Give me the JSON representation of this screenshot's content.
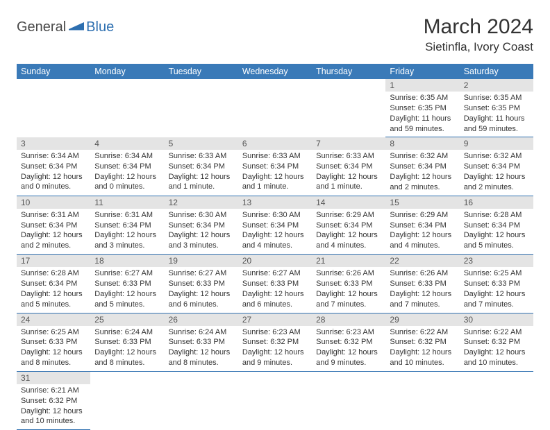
{
  "logo": {
    "general": "General",
    "blue": "Blue"
  },
  "title": "March 2024",
  "location": "Sietinfla, Ivory Coast",
  "colors": {
    "header_bg": "#3a7ab8",
    "header_text": "#ffffff",
    "daynum_bg": "#e4e4e4",
    "border": "#2d6fb0",
    "text": "#333333"
  },
  "day_names": [
    "Sunday",
    "Monday",
    "Tuesday",
    "Wednesday",
    "Thursday",
    "Friday",
    "Saturday"
  ],
  "weeks": [
    [
      null,
      null,
      null,
      null,
      null,
      {
        "n": "1",
        "sr": "6:35 AM",
        "ss": "6:35 PM",
        "dl": "11 hours and 59 minutes."
      },
      {
        "n": "2",
        "sr": "6:35 AM",
        "ss": "6:35 PM",
        "dl": "11 hours and 59 minutes."
      }
    ],
    [
      {
        "n": "3",
        "sr": "6:34 AM",
        "ss": "6:34 PM",
        "dl": "12 hours and 0 minutes."
      },
      {
        "n": "4",
        "sr": "6:34 AM",
        "ss": "6:34 PM",
        "dl": "12 hours and 0 minutes."
      },
      {
        "n": "5",
        "sr": "6:33 AM",
        "ss": "6:34 PM",
        "dl": "12 hours and 1 minute."
      },
      {
        "n": "6",
        "sr": "6:33 AM",
        "ss": "6:34 PM",
        "dl": "12 hours and 1 minute."
      },
      {
        "n": "7",
        "sr": "6:33 AM",
        "ss": "6:34 PM",
        "dl": "12 hours and 1 minute."
      },
      {
        "n": "8",
        "sr": "6:32 AM",
        "ss": "6:34 PM",
        "dl": "12 hours and 2 minutes."
      },
      {
        "n": "9",
        "sr": "6:32 AM",
        "ss": "6:34 PM",
        "dl": "12 hours and 2 minutes."
      }
    ],
    [
      {
        "n": "10",
        "sr": "6:31 AM",
        "ss": "6:34 PM",
        "dl": "12 hours and 2 minutes."
      },
      {
        "n": "11",
        "sr": "6:31 AM",
        "ss": "6:34 PM",
        "dl": "12 hours and 3 minutes."
      },
      {
        "n": "12",
        "sr": "6:30 AM",
        "ss": "6:34 PM",
        "dl": "12 hours and 3 minutes."
      },
      {
        "n": "13",
        "sr": "6:30 AM",
        "ss": "6:34 PM",
        "dl": "12 hours and 4 minutes."
      },
      {
        "n": "14",
        "sr": "6:29 AM",
        "ss": "6:34 PM",
        "dl": "12 hours and 4 minutes."
      },
      {
        "n": "15",
        "sr": "6:29 AM",
        "ss": "6:34 PM",
        "dl": "12 hours and 4 minutes."
      },
      {
        "n": "16",
        "sr": "6:28 AM",
        "ss": "6:34 PM",
        "dl": "12 hours and 5 minutes."
      }
    ],
    [
      {
        "n": "17",
        "sr": "6:28 AM",
        "ss": "6:34 PM",
        "dl": "12 hours and 5 minutes."
      },
      {
        "n": "18",
        "sr": "6:27 AM",
        "ss": "6:33 PM",
        "dl": "12 hours and 5 minutes."
      },
      {
        "n": "19",
        "sr": "6:27 AM",
        "ss": "6:33 PM",
        "dl": "12 hours and 6 minutes."
      },
      {
        "n": "20",
        "sr": "6:27 AM",
        "ss": "6:33 PM",
        "dl": "12 hours and 6 minutes."
      },
      {
        "n": "21",
        "sr": "6:26 AM",
        "ss": "6:33 PM",
        "dl": "12 hours and 7 minutes."
      },
      {
        "n": "22",
        "sr": "6:26 AM",
        "ss": "6:33 PM",
        "dl": "12 hours and 7 minutes."
      },
      {
        "n": "23",
        "sr": "6:25 AM",
        "ss": "6:33 PM",
        "dl": "12 hours and 7 minutes."
      }
    ],
    [
      {
        "n": "24",
        "sr": "6:25 AM",
        "ss": "6:33 PM",
        "dl": "12 hours and 8 minutes."
      },
      {
        "n": "25",
        "sr": "6:24 AM",
        "ss": "6:33 PM",
        "dl": "12 hours and 8 minutes."
      },
      {
        "n": "26",
        "sr": "6:24 AM",
        "ss": "6:33 PM",
        "dl": "12 hours and 8 minutes."
      },
      {
        "n": "27",
        "sr": "6:23 AM",
        "ss": "6:32 PM",
        "dl": "12 hours and 9 minutes."
      },
      {
        "n": "28",
        "sr": "6:23 AM",
        "ss": "6:32 PM",
        "dl": "12 hours and 9 minutes."
      },
      {
        "n": "29",
        "sr": "6:22 AM",
        "ss": "6:32 PM",
        "dl": "12 hours and 10 minutes."
      },
      {
        "n": "30",
        "sr": "6:22 AM",
        "ss": "6:32 PM",
        "dl": "12 hours and 10 minutes."
      }
    ],
    [
      {
        "n": "31",
        "sr": "6:21 AM",
        "ss": "6:32 PM",
        "dl": "12 hours and 10 minutes."
      },
      null,
      null,
      null,
      null,
      null,
      null
    ]
  ],
  "labels": {
    "sunrise": "Sunrise: ",
    "sunset": "Sunset: ",
    "daylight": "Daylight: "
  }
}
